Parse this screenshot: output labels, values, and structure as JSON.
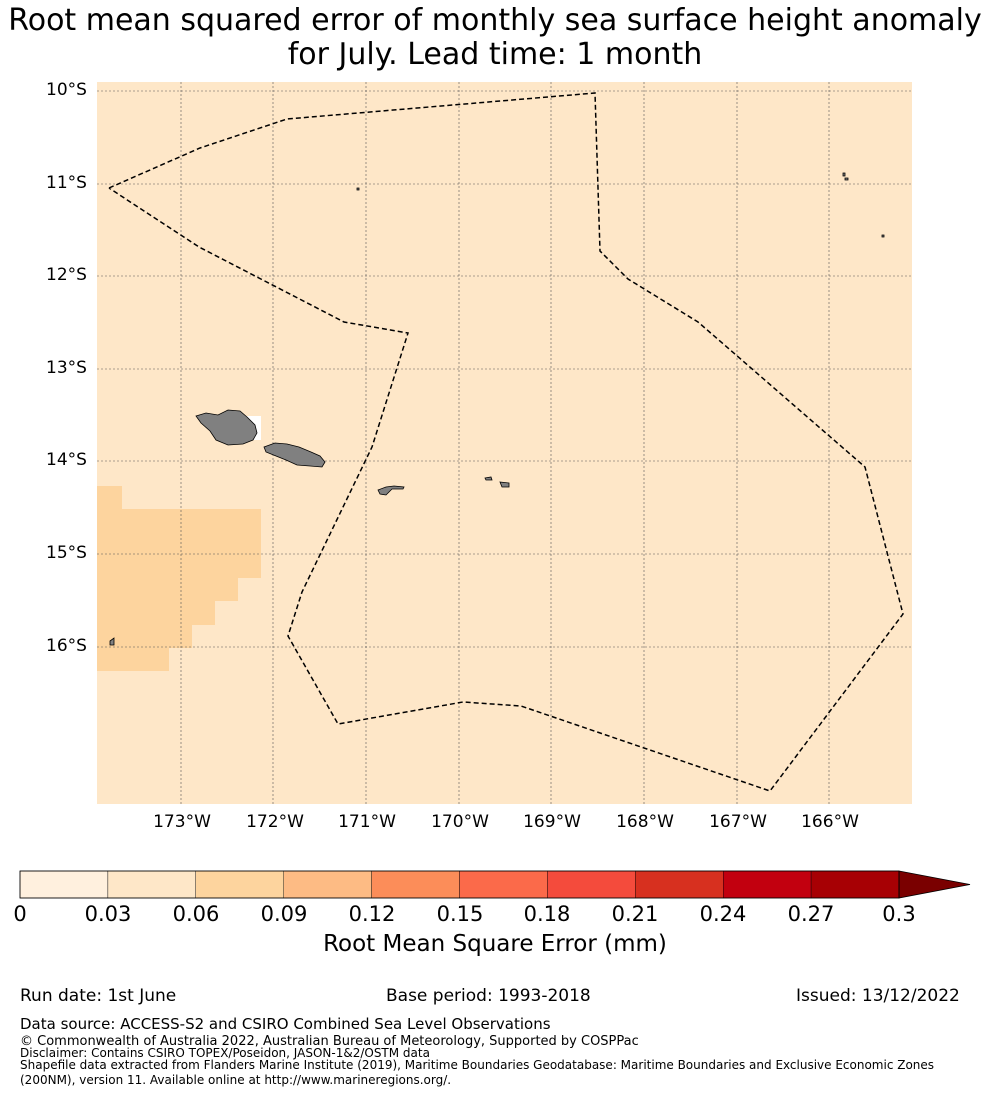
{
  "title": {
    "line1": "Root mean squared error of monthly sea surface height anomaly",
    "line2": "for July. Lead time: 1 month"
  },
  "map": {
    "region": "Samoa / American Samoa EEZ",
    "background_color": "#fee7c8",
    "land_color": "#808080",
    "elevated_error_color": "#fdd49e",
    "lat_labels": [
      "10°S",
      "11°S",
      "12°S",
      "13°S",
      "14°S",
      "15°S",
      "16°S"
    ],
    "lon_labels": [
      "173°W",
      "172°W",
      "171°W",
      "170°W",
      "169°W",
      "168°W",
      "167°W",
      "166°W"
    ]
  },
  "colorbar": {
    "ticks": [
      "0",
      "0.03",
      "0.06",
      "0.09",
      "0.12",
      "0.15",
      "0.18",
      "0.21",
      "0.24",
      "0.27",
      "0.3"
    ],
    "colors": [
      "#fff0de",
      "#fee7c8",
      "#fdd49e",
      "#fdbb84",
      "#fc8d59",
      "#fb6a4a",
      "#f44b3c",
      "#d7301f",
      "#c2000f",
      "#a70004"
    ],
    "extend_color": "#7a0000",
    "label": "Root Mean Square Error (mm)"
  },
  "footer": {
    "run_date": "Run date: 1st June",
    "base_period": "Base period: 1993-2018",
    "issued": "Issued: 13/12/2022",
    "data_source": "Data source: ACCESS-S2 and CSIRO Combined Sea Level Observations",
    "copyright": "© Commonwealth of Australia 2022, Australian Bureau of Meteorology, Supported by COSPPac",
    "disclaimer": "Disclaimer: Contains CSIRO TOPEX/Poseidon, JASON-1&2/OSTM data",
    "shapefile_line1": "Shapefile data extracted from Flanders Marine Institute (2019), Maritime Boundaries Geodatabase: Maritime Boundaries and Exclusive Economic Zones",
    "shapefile_line2": "(200NM), version 11. Available online at http://www.marineregions.org/."
  }
}
